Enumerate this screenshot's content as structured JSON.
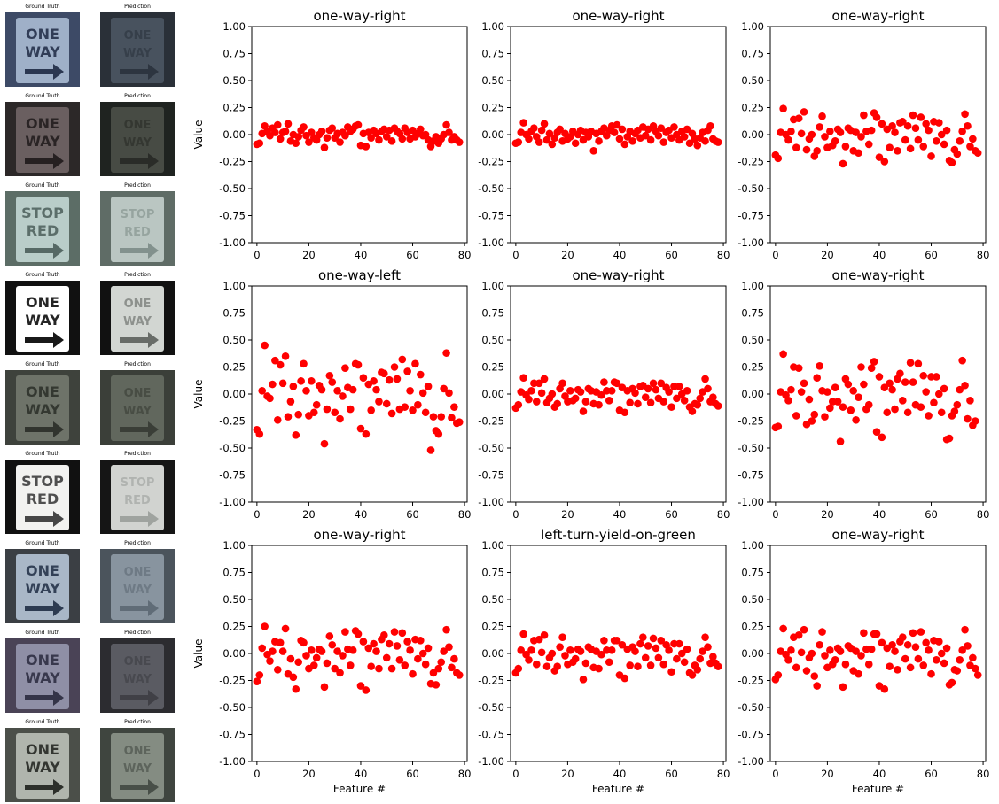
{
  "thumbnails": {
    "gt_label": "Ground Truth",
    "pred_label": "Prediction",
    "rows": [
      {
        "gt_text": [
          "ONE",
          "WAY"
        ],
        "gt_bg": "#3d4a66",
        "gt_sign": "#9fb0c8",
        "gt_ink": "#1e2a44",
        "pred_bg": "#2a3038",
        "pred_sign": "#4b5663",
        "pred_ink": "#222a33"
      },
      {
        "gt_text": [
          "ONE",
          "WAY"
        ],
        "gt_bg": "#2c2828",
        "gt_sign": "#6a5f60",
        "gt_ink": "#1f1a1b",
        "pred_bg": "#1f2320",
        "pred_sign": "#4b5048",
        "pred_ink": "#1e201c"
      },
      {
        "gt_text": [
          "STOP",
          "RED"
        ],
        "gt_bg": "#5c6d66",
        "gt_sign": "#b9cdc9",
        "gt_ink": "#4b5e5a",
        "pred_bg": "#5f6c66",
        "pred_sign": "#c4d0cc",
        "pred_ink": "#6b7b76"
      },
      {
        "gt_text": [
          "ONE",
          "WAY"
        ],
        "gt_bg": "#111111",
        "gt_sign": "#ffffff",
        "gt_ink": "#000000",
        "pred_bg": "#111111",
        "pred_sign": "#e8ece8",
        "pred_ink": "#3b3f3b"
      },
      {
        "gt_text": [
          "ONE",
          "WAY"
        ],
        "gt_bg": "#3e423c",
        "gt_sign": "#6e7369",
        "gt_ink": "#2a2e28",
        "pred_bg": "#3b3f39",
        "pred_sign": "#666b62",
        "pred_ink": "#2a2e28"
      },
      {
        "gt_text": [
          "STOP",
          "RED"
        ],
        "gt_bg": "#111111",
        "gt_sign": "#f2f2f0",
        "gt_ink": "#333333",
        "pred_bg": "#151515",
        "pred_sign": "#e6e8e4",
        "pred_ink": "#8a8e8a"
      },
      {
        "gt_text": [
          "ONE",
          "WAY"
        ],
        "gt_bg": "#3b3f44",
        "gt_sign": "#a9b7c7",
        "gt_ink": "#1f2d44",
        "pred_bg": "#4b545c",
        "pred_sign": "#8f9ba6",
        "pred_ink": "#505b66"
      },
      {
        "gt_text": [
          "ONE",
          "WAY"
        ],
        "gt_bg": "#4a4356",
        "gt_sign": "#8f8fa6",
        "gt_ink": "#2a2a3e",
        "pred_bg": "#2c2c30",
        "pred_sign": "#5f6068",
        "pred_ink": "#34343a"
      },
      {
        "gt_text": [
          "ONE",
          "WAY"
        ],
        "gt_bg": "#4b4f49",
        "gt_sign": "#b0b5ad",
        "gt_ink": "#1e201c",
        "pred_bg": "#3f453f",
        "pred_sign": "#8c948a",
        "pred_ink": "#2f352f"
      }
    ]
  },
  "colors": {
    "point": "#ff0000"
  },
  "chart_data": [
    {
      "type": "scatter",
      "title": "one-way-right",
      "xlabel": "",
      "ylabel": "Value",
      "xlim": [
        -2,
        81
      ],
      "ylim": [
        -1,
        1
      ],
      "xticks": [
        0,
        20,
        40,
        60,
        80
      ],
      "yticks": [
        1.0,
        0.75,
        0.5,
        0.25,
        0.0,
        -0.25,
        -0.5,
        -0.75,
        -1.0
      ],
      "grid": false,
      "legend": "none",
      "y": [
        -0.09,
        -0.08,
        0.01,
        0.08,
        0.03,
        -0.01,
        0.06,
        0.02,
        0.09,
        -0.04,
        0.02,
        0.03,
        0.1,
        -0.06,
        0.0,
        -0.08,
        -0.02,
        0.04,
        0.07,
        -0.01,
        -0.07,
        0.02,
        -0.03,
        -0.05,
        0.0,
        0.03,
        -0.12,
        -0.03,
        0.04,
        0.06,
        -0.03,
        0.01,
        -0.07,
        0.02,
        -0.01,
        0.07,
        0.03,
        0.05,
        0.08,
        0.09,
        -0.1,
        0.01,
        -0.11,
        0.02,
        -0.03,
        0.04,
        0.01,
        -0.05,
        0.03,
        0.05,
        -0.02,
        0.04,
        -0.06,
        0.06,
        0.03,
        0.01,
        -0.04,
        0.06,
        0.02,
        -0.04,
        0.04,
        -0.02,
        0.01,
        0.05,
        -0.01,
        0.0,
        -0.05,
        -0.11,
        -0.06,
        -0.02,
        -0.08,
        -0.04,
        0.0,
        0.09,
        0.02,
        -0.05,
        -0.02,
        -0.05,
        -0.07
      ]
    },
    {
      "type": "scatter",
      "title": "one-way-right",
      "xlabel": "",
      "ylabel": "",
      "xlim": [
        -2,
        81
      ],
      "ylim": [
        -1,
        1
      ],
      "xticks": [
        0,
        20,
        40,
        60,
        80
      ],
      "yticks": [
        1.0,
        0.75,
        0.5,
        0.25,
        0.0,
        -0.25,
        -0.5,
        -0.75,
        -1.0
      ],
      "grid": false,
      "legend": "none",
      "y": [
        -0.08,
        -0.07,
        0.02,
        0.11,
        0.0,
        -0.04,
        0.03,
        0.06,
        -0.02,
        -0.07,
        0.04,
        0.1,
        -0.05,
        0.01,
        -0.09,
        -0.03,
        0.02,
        0.05,
        -0.06,
        0.01,
        -0.04,
        -0.02,
        0.03,
        -0.08,
        0.0,
        0.04,
        -0.05,
        0.02,
        -0.02,
        0.03,
        -0.15,
        0.01,
        -0.06,
        0.03,
        0.06,
        -0.01,
        0.04,
        0.08,
        0.02,
        0.09,
        -0.04,
        0.05,
        -0.09,
        -0.02,
        0.03,
        -0.06,
        0.01,
        0.04,
        -0.03,
        0.07,
        -0.01,
        0.05,
        -0.05,
        0.08,
        0.03,
        -0.01,
        0.06,
        -0.07,
        0.02,
        0.04,
        -0.03,
        0.07,
        0.0,
        -0.05,
        0.03,
        -0.02,
        0.05,
        -0.08,
        0.01,
        -0.04,
        -0.1,
        -0.03,
        0.02,
        -0.06,
        0.04,
        0.08,
        -0.04,
        -0.06,
        -0.07
      ]
    },
    {
      "type": "scatter",
      "title": "one-way-right",
      "xlabel": "",
      "ylabel": "",
      "xlim": [
        -2,
        81
      ],
      "ylim": [
        -1,
        1
      ],
      "xticks": [
        0,
        20,
        40,
        60,
        80
      ],
      "yticks": [
        1.0,
        0.75,
        0.5,
        0.25,
        0.0,
        -0.25,
        -0.5,
        -0.75,
        -1.0
      ],
      "grid": false,
      "legend": "none",
      "y": [
        -0.19,
        -0.22,
        0.02,
        0.24,
        0.0,
        -0.05,
        0.03,
        0.14,
        -0.12,
        0.15,
        0.01,
        0.21,
        -0.14,
        -0.04,
        0.0,
        -0.2,
        -0.15,
        0.07,
        0.17,
        -0.02,
        -0.12,
        0.03,
        -0.1,
        -0.06,
        0.05,
        0.02,
        -0.27,
        -0.11,
        0.06,
        0.04,
        -0.15,
        0.02,
        -0.17,
        -0.02,
        0.18,
        0.03,
        -0.09,
        0.04,
        0.2,
        0.16,
        -0.21,
        0.1,
        -0.25,
        0.05,
        -0.12,
        0.08,
        0.02,
        -0.15,
        0.11,
        0.12,
        -0.05,
        0.08,
        -0.13,
        0.18,
        0.06,
        -0.05,
        0.16,
        -0.11,
        0.1,
        0.04,
        -0.2,
        0.12,
        -0.06,
        0.11,
        0.0,
        -0.09,
        0.04,
        -0.24,
        -0.26,
        -0.14,
        -0.18,
        -0.06,
        0.03,
        0.19,
        0.08,
        -0.11,
        -0.04,
        -0.15,
        -0.17
      ]
    },
    {
      "type": "scatter",
      "title": "one-way-left",
      "xlabel": "",
      "ylabel": "Value",
      "xlim": [
        -2,
        81
      ],
      "ylim": [
        -1,
        1
      ],
      "xticks": [
        0,
        20,
        40,
        60,
        80
      ],
      "yticks": [
        1.0,
        0.75,
        0.5,
        0.25,
        0.0,
        -0.25,
        -0.5,
        -0.75,
        -1.0
      ],
      "grid": false,
      "legend": "none",
      "y": [
        -0.33,
        -0.37,
        0.03,
        0.45,
        -0.02,
        -0.04,
        0.09,
        0.31,
        -0.24,
        0.27,
        0.1,
        0.35,
        -0.21,
        -0.07,
        0.07,
        -0.38,
        -0.19,
        0.12,
        0.28,
        0.03,
        -0.2,
        0.12,
        -0.17,
        -0.1,
        0.08,
        0.04,
        -0.46,
        -0.14,
        0.17,
        0.11,
        -0.17,
        0.03,
        -0.23,
        -0.02,
        0.24,
        0.06,
        -0.14,
        0.04,
        0.28,
        0.27,
        -0.32,
        0.15,
        -0.37,
        0.09,
        -0.15,
        0.12,
        0.04,
        -0.07,
        0.2,
        0.19,
        -0.09,
        0.13,
        -0.18,
        0.25,
        0.14,
        -0.14,
        0.32,
        -0.12,
        0.21,
        0.03,
        -0.15,
        0.28,
        -0.1,
        0.18,
        0.01,
        -0.17,
        0.07,
        -0.52,
        -0.21,
        -0.34,
        -0.37,
        -0.21,
        0.05,
        0.38,
        0.01,
        -0.22,
        -0.12,
        -0.27,
        -0.26
      ]
    },
    {
      "type": "scatter",
      "title": "one-way-right",
      "xlabel": "",
      "ylabel": "",
      "xlim": [
        -2,
        81
      ],
      "ylim": [
        -1,
        1
      ],
      "xticks": [
        0,
        20,
        40,
        60,
        80
      ],
      "yticks": [
        1.0,
        0.75,
        0.5,
        0.25,
        0.0,
        -0.25,
        -0.5,
        -0.75,
        -1.0
      ],
      "grid": false,
      "legend": "none",
      "y": [
        -0.13,
        -0.1,
        0.02,
        0.15,
        -0.01,
        -0.05,
        0.03,
        0.1,
        -0.07,
        0.1,
        0.01,
        0.14,
        -0.08,
        -0.04,
        0.0,
        -0.12,
        -0.09,
        0.05,
        0.1,
        -0.02,
        -0.07,
        0.03,
        -0.06,
        -0.04,
        0.04,
        0.02,
        -0.16,
        -0.07,
        0.05,
        0.03,
        -0.09,
        0.02,
        -0.1,
        -0.01,
        0.11,
        0.03,
        -0.06,
        0.03,
        0.11,
        0.1,
        -0.15,
        0.06,
        -0.17,
        0.03,
        -0.08,
        0.05,
        0.01,
        -0.09,
        0.07,
        0.08,
        -0.03,
        0.05,
        -0.08,
        0.1,
        0.04,
        -0.04,
        0.1,
        -0.07,
        0.06,
        0.02,
        -0.12,
        0.07,
        -0.04,
        0.07,
        0.0,
        -0.06,
        0.03,
        -0.12,
        -0.16,
        -0.09,
        -0.1,
        -0.04,
        0.02,
        0.14,
        0.05,
        -0.07,
        -0.03,
        -0.09,
        -0.11
      ]
    },
    {
      "type": "scatter",
      "title": "one-way-right",
      "xlabel": "",
      "ylabel": "",
      "xlim": [
        -2,
        81
      ],
      "ylim": [
        -1,
        1
      ],
      "xticks": [
        0,
        20,
        40,
        60,
        80
      ],
      "yticks": [
        1.0,
        0.75,
        0.5,
        0.25,
        0.0,
        -0.25,
        -0.5,
        -0.75,
        -1.0
      ],
      "grid": false,
      "legend": "none",
      "y": [
        -0.31,
        -0.3,
        0.02,
        0.37,
        -0.01,
        -0.06,
        0.04,
        0.25,
        -0.2,
        0.24,
        0.02,
        0.1,
        -0.28,
        -0.05,
        -0.25,
        -0.19,
        0.15,
        0.26,
        0.03,
        -0.21,
        0.02,
        -0.13,
        -0.07,
        0.06,
        -0.07,
        -0.44,
        -0.12,
        0.14,
        0.09,
        -0.15,
        0.03,
        -0.24,
        -0.03,
        0.25,
        0.09,
        -0.14,
        -0.1,
        0.24,
        0.3,
        -0.35,
        0.16,
        -0.4,
        0.06,
        -0.17,
        0.1,
        0.04,
        -0.14,
        0.14,
        0.19,
        -0.06,
        0.11,
        -0.17,
        0.29,
        0.11,
        -0.1,
        0.28,
        -0.12,
        0.17,
        0.02,
        -0.2,
        0.16,
        -0.08,
        0.16,
        0.0,
        -0.17,
        0.05,
        -0.42,
        -0.41,
        -0.2,
        -0.16,
        -0.1,
        0.04,
        0.31,
        0.08,
        -0.23,
        -0.06,
        -0.29,
        -0.25
      ]
    },
    {
      "type": "scatter",
      "title": "one-way-right",
      "xlabel": "Feature #",
      "ylabel": "Value",
      "xlim": [
        -2,
        81
      ],
      "ylim": [
        -1,
        1
      ],
      "xticks": [
        0,
        20,
        40,
        60,
        80
      ],
      "yticks": [
        1.0,
        0.75,
        0.5,
        0.25,
        0.0,
        -0.25,
        -0.5,
        -0.75,
        -1.0
      ],
      "grid": false,
      "legend": "none",
      "y": [
        -0.26,
        -0.2,
        0.05,
        0.25,
        -0.01,
        -0.07,
        0.02,
        0.11,
        -0.15,
        0.1,
        0.02,
        0.23,
        -0.19,
        -0.05,
        -0.22,
        -0.33,
        -0.08,
        0.12,
        0.1,
        -0.02,
        -0.14,
        0.03,
        -0.11,
        -0.04,
        0.04,
        0.02,
        -0.31,
        -0.09,
        0.16,
        0.08,
        -0.14,
        0.02,
        -0.18,
        -0.02,
        0.2,
        0.04,
        -0.11,
        0.03,
        0.21,
        0.18,
        -0.3,
        0.11,
        -0.34,
        0.05,
        -0.12,
        0.09,
        0.02,
        -0.14,
        0.13,
        0.17,
        -0.04,
        0.09,
        -0.14,
        0.2,
        0.07,
        -0.06,
        0.19,
        -0.11,
        0.11,
        0.03,
        -0.19,
        0.13,
        -0.05,
        0.12,
        0.0,
        -0.1,
        0.05,
        -0.28,
        -0.18,
        -0.29,
        -0.14,
        -0.08,
        0.02,
        0.22,
        0.06,
        -0.13,
        -0.05,
        -0.18,
        -0.2
      ]
    },
    {
      "type": "scatter",
      "title": "left-turn-yield-on-green",
      "xlabel": "Feature #",
      "ylabel": "",
      "xlim": [
        -2,
        81
      ],
      "ylim": [
        -1,
        1
      ],
      "xticks": [
        0,
        20,
        40,
        60,
        80
      ],
      "yticks": [
        1.0,
        0.75,
        0.5,
        0.25,
        0.0,
        -0.25,
        -0.5,
        -0.75,
        -1.0
      ],
      "grid": false,
      "legend": "none",
      "y": [
        -0.18,
        -0.14,
        0.03,
        0.18,
        -0.01,
        -0.06,
        0.03,
        0.12,
        -0.1,
        0.13,
        0.01,
        0.17,
        -0.12,
        -0.04,
        0.0,
        -0.16,
        -0.12,
        0.06,
        0.15,
        -0.02,
        -0.1,
        0.03,
        -0.08,
        -0.05,
        0.04,
        0.02,
        -0.24,
        -0.09,
        0.06,
        0.04,
        -0.13,
        0.02,
        -0.14,
        -0.01,
        0.12,
        0.03,
        -0.08,
        0.03,
        0.12,
        0.12,
        -0.2,
        0.08,
        -0.23,
        0.04,
        -0.11,
        0.06,
        0.02,
        -0.12,
        0.09,
        0.15,
        -0.04,
        0.07,
        -0.11,
        0.14,
        0.05,
        -0.04,
        0.12,
        -0.1,
        0.08,
        0.03,
        -0.17,
        0.09,
        -0.05,
        0.09,
        0.0,
        -0.08,
        0.04,
        -0.18,
        -0.2,
        -0.11,
        -0.15,
        -0.05,
        0.02,
        0.15,
        0.06,
        -0.09,
        -0.03,
        -0.09,
        -0.12
      ]
    },
    {
      "type": "scatter",
      "title": "one-way-right",
      "xlabel": "Feature #",
      "ylabel": "",
      "xlim": [
        -2,
        81
      ],
      "ylim": [
        -1,
        1
      ],
      "xticks": [
        0,
        20,
        40,
        60,
        80
      ],
      "yticks": [
        1.0,
        0.75,
        0.5,
        0.25,
        0.0,
        -0.25,
        -0.5,
        -0.75,
        -1.0
      ],
      "grid": false,
      "legend": "none",
      "y": [
        -0.24,
        -0.2,
        0.02,
        0.23,
        -0.01,
        -0.06,
        0.03,
        0.15,
        -0.13,
        0.17,
        0.01,
        0.22,
        -0.16,
        -0.04,
        0.0,
        -0.21,
        -0.3,
        0.08,
        0.2,
        -0.02,
        -0.13,
        0.03,
        -0.1,
        -0.06,
        0.05,
        0.02,
        -0.31,
        -0.1,
        0.07,
        0.05,
        -0.16,
        0.02,
        -0.19,
        -0.02,
        0.19,
        0.04,
        -0.1,
        0.04,
        0.18,
        0.18,
        -0.3,
        0.1,
        -0.33,
        0.05,
        -0.12,
        0.08,
        0.02,
        -0.15,
        0.11,
        0.15,
        -0.05,
        0.08,
        -0.13,
        0.19,
        0.06,
        -0.05,
        0.2,
        -0.11,
        0.1,
        0.03,
        -0.19,
        0.12,
        -0.06,
        0.11,
        0.0,
        -0.09,
        0.05,
        -0.29,
        -0.27,
        -0.15,
        -0.16,
        -0.06,
        0.03,
        0.22,
        0.07,
        -0.11,
        -0.04,
        -0.14,
        -0.2
      ]
    }
  ]
}
